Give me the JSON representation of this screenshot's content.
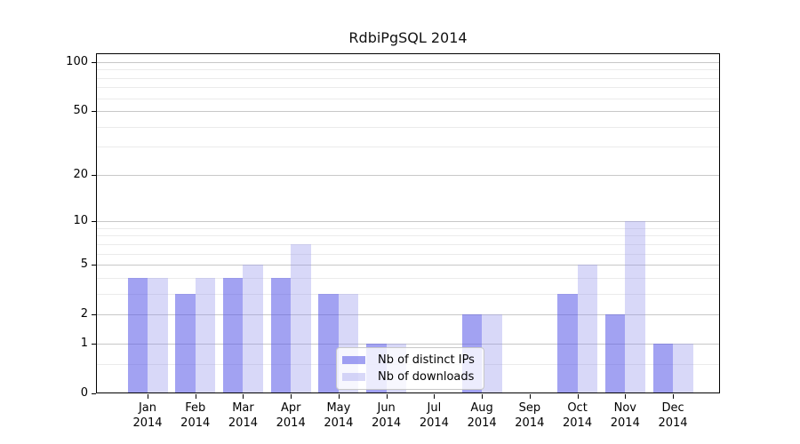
{
  "page": {
    "title": "RdbiPgSQL 2014"
  },
  "chart_data": {
    "type": "bar",
    "title": "RdbiPgSQL 2014",
    "categories": [
      "Jan",
      "Feb",
      "Mar",
      "Apr",
      "May",
      "Jun",
      "Jul",
      "Aug",
      "Sep",
      "Oct",
      "Nov",
      "Dec"
    ],
    "year": "2014",
    "series": [
      {
        "name": "Nb of distinct IPs",
        "values": [
          4,
          3,
          4,
          4,
          3,
          1,
          0,
          2,
          0,
          3,
          2,
          1
        ],
        "color": "rgba(86,86,232,0.55)"
      },
      {
        "name": "Nb of downloads",
        "values": [
          4,
          4,
          5,
          7,
          3,
          1,
          0,
          2,
          0,
          5,
          10,
          1
        ],
        "color": "rgba(144,144,235,0.35)"
      }
    ],
    "yscale": "log1p",
    "ylim": [
      0,
      113
    ],
    "y_major_ticks": [
      0,
      1,
      2,
      5,
      10,
      20,
      50,
      100
    ],
    "y_minor_gridlines": [
      0.5,
      3,
      4,
      6,
      7,
      8,
      9,
      30,
      40,
      60,
      70,
      80,
      90
    ],
    "grid": true,
    "legend_position": "lower center"
  },
  "colors": {
    "bar_distinct_ips": "#a2a2f2",
    "bar_downloads": "#d8d8f8",
    "grid_major": "#c8c8c8",
    "grid_minor": "#ebebeb",
    "axis": "#000000",
    "legend_border": "#c8c8c8",
    "background": "#ffffff"
  }
}
